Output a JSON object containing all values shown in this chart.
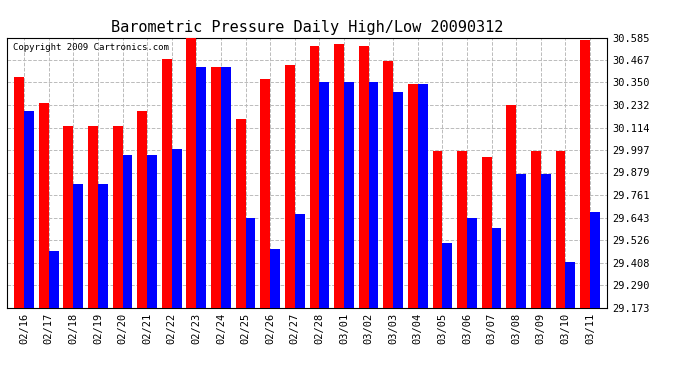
{
  "title": "Barometric Pressure Daily High/Low 20090312",
  "copyright": "Copyright 2009 Cartronics.com",
  "dates": [
    "02/16",
    "02/17",
    "02/18",
    "02/19",
    "02/20",
    "02/21",
    "02/22",
    "02/23",
    "02/24",
    "02/25",
    "02/26",
    "02/27",
    "02/28",
    "03/01",
    "03/02",
    "03/03",
    "03/04",
    "03/05",
    "03/06",
    "03/07",
    "03/08",
    "03/09",
    "03/10",
    "03/11"
  ],
  "highs": [
    30.38,
    30.24,
    30.12,
    30.12,
    30.12,
    30.2,
    30.47,
    30.58,
    30.43,
    30.16,
    30.37,
    30.44,
    30.54,
    30.55,
    30.54,
    30.46,
    30.34,
    29.99,
    29.99,
    29.96,
    30.23,
    29.99,
    29.99,
    30.57
  ],
  "lows": [
    30.2,
    29.47,
    29.82,
    29.82,
    29.97,
    29.97,
    30.0,
    30.43,
    30.43,
    29.64,
    29.48,
    29.66,
    30.35,
    30.35,
    30.35,
    30.3,
    30.34,
    29.51,
    29.64,
    29.59,
    29.87,
    29.87,
    29.41,
    29.67
  ],
  "ylim_min": 29.173,
  "ylim_max": 30.585,
  "yticks": [
    29.173,
    29.29,
    29.408,
    29.526,
    29.643,
    29.761,
    29.879,
    29.997,
    30.114,
    30.232,
    30.35,
    30.467,
    30.585
  ],
  "high_color": "#ff0000",
  "low_color": "#0000ff",
  "bg_color": "#ffffff",
  "grid_color": "#bbbbbb",
  "title_fontsize": 11,
  "tick_fontsize": 7.5,
  "bar_width": 0.4
}
